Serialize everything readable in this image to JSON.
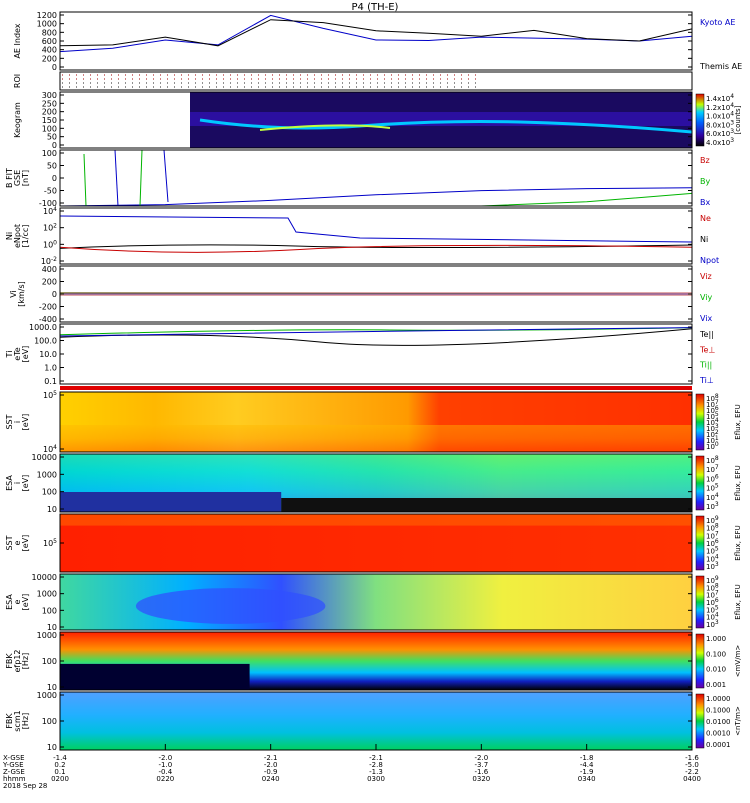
{
  "title": "P4 (TH-E)",
  "panels": [
    {
      "id": "ae",
      "ylabel": [
        "AE Index"
      ],
      "ticks": [
        "1200",
        "1000",
        "800",
        "600",
        "400",
        "200",
        "0"
      ],
      "legend": [
        {
          "text": "Kyoto AE",
          "color": "#0000c8"
        },
        {
          "text": "Themis AE",
          "color": "#000000"
        }
      ]
    },
    {
      "id": "roi",
      "ylabel": [
        "ROI"
      ],
      "ticks": [],
      "legend": []
    },
    {
      "id": "keogram",
      "ylabel": [
        "Keogram"
      ],
      "ticks": [
        "300",
        "250",
        "200",
        "150",
        "100",
        "50",
        "0"
      ],
      "legend": [],
      "colorbar": {
        "labels": [
          "1.4x10^4",
          "1.2x10^4",
          "1.0x10^4",
          "8.0x10^3",
          "6.0x10^3",
          "4.0x10^3"
        ],
        "unit": "[counts]"
      }
    },
    {
      "id": "bfit",
      "ylabel": [
        "B FIT",
        "GSE",
        "[nT]"
      ],
      "ticks": [
        "100",
        "50",
        "0",
        "-50",
        "-100"
      ],
      "legend": [
        {
          "text": "Bz",
          "color": "#c80000"
        },
        {
          "text": "By",
          "color": "#00b400"
        },
        {
          "text": "Bx",
          "color": "#0000c8"
        }
      ]
    },
    {
      "id": "ni",
      "ylabel": [
        "Ni",
        "eNpot",
        "[1/cc]"
      ],
      "ticks": [
        "10^4",
        "10^2",
        "10^0",
        "10^-2"
      ],
      "legend": [
        {
          "text": "Ne",
          "color": "#c80000"
        },
        {
          "text": "Ni",
          "color": "#000000"
        },
        {
          "text": "Npot",
          "color": "#0000c8"
        }
      ]
    },
    {
      "id": "vi",
      "ylabel": [
        "Vi",
        "[km/s]"
      ],
      "ticks": [
        "400",
        "200",
        "0",
        "-200",
        "-400"
      ],
      "legend": [
        {
          "text": "Viz",
          "color": "#c80000"
        },
        {
          "text": "Viy",
          "color": "#00b400"
        },
        {
          "text": "Vix",
          "color": "#0000c8"
        }
      ]
    },
    {
      "id": "ti",
      "ylabel": [
        "Ti",
        "eTe",
        "[eV]"
      ],
      "ticks": [
        "1000.0",
        "100.0",
        "10.0",
        "1.0",
        "0.1"
      ],
      "legend": [
        {
          "text": "Te||",
          "color": "#000000"
        },
        {
          "text": "Te⊥",
          "color": "#c80000"
        },
        {
          "text": "Ti||",
          "color": "#00b400"
        },
        {
          "text": "Ti⊥",
          "color": "#0000c8"
        }
      ]
    },
    {
      "id": "sst_i",
      "ylabel": [
        "SST",
        "i",
        "[eV]"
      ],
      "ticks": [
        "10^5",
        "10^4"
      ],
      "legend": [],
      "colorbar": {
        "labels": [
          "10^8",
          "10^7",
          "10^6",
          "10^5",
          "10^4",
          "10^3",
          "10^2",
          "10^1",
          "10^0"
        ],
        "unit": "Eflux, EFU"
      }
    },
    {
      "id": "esa_i",
      "ylabel": [
        "ESA",
        "i",
        "[eV]"
      ],
      "ticks": [
        "10000",
        "1000",
        "100",
        "10"
      ],
      "legend": [],
      "colorbar": {
        "labels": [
          "10^8",
          "10^7",
          "10^6",
          "10^5",
          "10^4",
          "10^3"
        ],
        "unit": "Eflux, EFU"
      }
    },
    {
      "id": "sst_e",
      "ylabel": [
        "SST",
        "e",
        "[eV]"
      ],
      "ticks": [
        "10^5"
      ],
      "legend": [],
      "colorbar": {
        "labels": [
          "10^9",
          "10^8",
          "10^7",
          "10^6",
          "10^5",
          "10^4",
          "10^3"
        ],
        "unit": "Eflux, EFU"
      }
    },
    {
      "id": "esa_e",
      "ylabel": [
        "ESA",
        "e",
        "[eV]"
      ],
      "ticks": [
        "10000",
        "1000",
        "100",
        "10"
      ],
      "legend": [],
      "colorbar": {
        "labels": [
          "10^9",
          "10^8",
          "10^7",
          "10^6",
          "10^5",
          "10^4",
          "10^3"
        ],
        "unit": "Eflux, EFU"
      }
    },
    {
      "id": "fbk_e",
      "ylabel": [
        "FBK",
        "efp12",
        "[Hz]"
      ],
      "ticks": [
        "1000",
        "100",
        "10"
      ],
      "legend": [],
      "colorbar": {
        "labels": [
          "1.000",
          "0.100",
          "0.010",
          "0.001"
        ],
        "unit": "<mV/m>"
      }
    },
    {
      "id": "fbk_b",
      "ylabel": [
        "FBK",
        "scm1",
        "[Hz]"
      ],
      "ticks": [
        "1000",
        "100",
        "10"
      ],
      "legend": [],
      "colorbar": {
        "labels": [
          "1.0000",
          "0.1000",
          "0.0100",
          "0.0010",
          "0.0001"
        ],
        "unit": "<nT/m>"
      }
    }
  ],
  "footer": {
    "row_labels": [
      "X-GSE",
      "Y-GSE",
      "Z-GSE",
      "hhmm",
      "2018 Sep 28"
    ],
    "columns": [
      {
        "x": "-1.4",
        "y": "0.2",
        "z": "0.1",
        "t": "0200"
      },
      {
        "x": "-2.0",
        "y": "-1.0",
        "z": "-0.4",
        "t": "0220"
      },
      {
        "x": "-2.1",
        "y": "-2.0",
        "z": "-0.9",
        "t": "0240"
      },
      {
        "x": "-2.1",
        "y": "-2.8",
        "z": "-1.3",
        "t": "0300"
      },
      {
        "x": "-2.0",
        "y": "-3.7",
        "z": "-1.6",
        "t": "0320"
      },
      {
        "x": "-1.8",
        "y": "-4.4",
        "z": "-1.9",
        "t": "0340"
      },
      {
        "x": "-1.6",
        "y": "-5.0",
        "z": "-2.2",
        "t": "0400"
      }
    ]
  },
  "chart_data": {
    "type": "line",
    "time_range": [
      "0200",
      "0400"
    ],
    "ae_index": {
      "ylim": [
        0,
        1200
      ],
      "times": [
        "0200",
        "0210",
        "0220",
        "0230",
        "0240",
        "0250",
        "0300",
        "0310",
        "0320",
        "0330",
        "0340",
        "0350",
        "0400"
      ],
      "series": [
        {
          "name": "Kyoto AE",
          "values": [
            380,
            450,
            620,
            520,
            1130,
            860,
            620,
            610,
            680,
            660,
            640,
            600,
            700
          ]
        },
        {
          "name": "Themis AE",
          "values": [
            500,
            520,
            680,
            500,
            1040,
            980,
            810,
            760,
            700,
            820,
            650,
            600,
            850
          ]
        }
      ]
    },
    "b_fit": {
      "ylim": [
        -100,
        100
      ],
      "times": [
        "0200",
        "0220",
        "0240",
        "0300",
        "0320",
        "0340",
        "0400"
      ],
      "series": [
        {
          "name": "Bz",
          "values": [
            -100,
            -100,
            -100,
            -100,
            -100,
            -100,
            -100
          ]
        },
        {
          "name": "By",
          "values": [
            -100,
            -100,
            -100,
            -100,
            -100,
            -85,
            -55
          ]
        },
        {
          "name": "Bx",
          "values": [
            -100,
            -95,
            -80,
            -60,
            -45,
            -38,
            -35
          ]
        }
      ]
    },
    "vi": {
      "ylim": [
        -500,
        500
      ],
      "times": [
        "0200",
        "0400"
      ],
      "series": [
        {
          "name": "Viz",
          "values": [
            0,
            0
          ]
        },
        {
          "name": "Viy",
          "values": [
            20,
            0
          ]
        },
        {
          "name": "Vix",
          "values": [
            0,
            0
          ]
        }
      ]
    }
  }
}
